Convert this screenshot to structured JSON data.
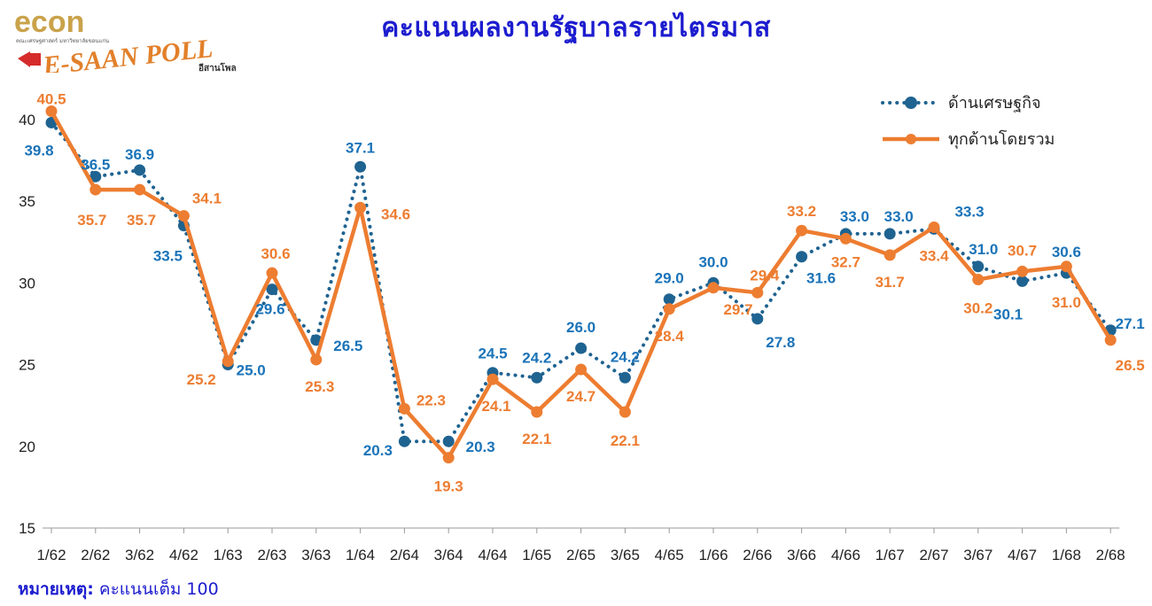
{
  "header": {
    "title": "คะแนนผลงานรัฐบาลรายไตรมาส",
    "logo_econ": "econ",
    "logo_econ_sub": "คณะเศรษฐศาสตร์ มหาวิทยาลัยขอนแก่น",
    "logo_poll": "E-SAAN POLL",
    "logo_poll_sub": "อีสานโพล"
  },
  "footer": {
    "note_label": "หมายเหตุ:",
    "note_text": "คะแนนเต็ม 100"
  },
  "colors": {
    "economy": "#1f6391",
    "economy_label": "#1a73b8",
    "overall": "#ed7d31",
    "title": "#1c1ccf"
  },
  "chart_data": {
    "type": "line",
    "categories": [
      "1/62",
      "2/62",
      "3/62",
      "4/62",
      "1/63",
      "2/63",
      "3/63",
      "1/64",
      "2/64",
      "3/64",
      "4/64",
      "1/65",
      "2/65",
      "3/65",
      "4/65",
      "1/66",
      "2/66",
      "3/66",
      "4/66",
      "1/67",
      "2/67",
      "3/67",
      "4/67",
      "1/68",
      "2/68"
    ],
    "ylim": [
      15,
      40
    ],
    "yticks": [
      15,
      20,
      25,
      30,
      35,
      40
    ],
    "grid": false,
    "legend_position": "top-right",
    "series": [
      {
        "name": "ด้านเศรษฐกิจ",
        "style": "dotted-with-markers",
        "values": [
          39.8,
          36.5,
          36.9,
          33.5,
          25.0,
          29.6,
          26.5,
          37.1,
          20.3,
          20.3,
          24.5,
          24.2,
          26.0,
          24.2,
          29.0,
          30.0,
          27.8,
          31.6,
          33.0,
          33.0,
          33.3,
          31.0,
          30.1,
          30.6,
          27.1
        ],
        "labels": [
          "39.8",
          "36.5",
          "36.9",
          "33.5",
          "25.0",
          "29.6",
          "26.5",
          "37.1",
          "20.3",
          "20.3",
          "24.5",
          "24.2",
          "26.0",
          "24.2",
          "29.0",
          "30.0",
          "27.8",
          "31.6",
          "33.0",
          "33.0",
          "33.3",
          "31.0",
          "30.1",
          "30.6",
          "27.1"
        ]
      },
      {
        "name": "ทุกด้านโดยรวม",
        "style": "solid-with-markers",
        "values": [
          40.5,
          35.7,
          35.7,
          34.1,
          25.2,
          30.6,
          25.3,
          34.6,
          22.3,
          19.3,
          24.1,
          22.1,
          24.7,
          22.1,
          28.4,
          29.7,
          29.4,
          33.2,
          32.7,
          31.7,
          33.4,
          30.2,
          30.7,
          31.0,
          26.5
        ],
        "labels": [
          "40.5",
          "35.7",
          "35.7",
          "34.1",
          "25.2",
          "30.6",
          "25.3",
          "34.6",
          "22.3",
          "19.3",
          "24.1",
          "22.1",
          "24.7",
          "22.1",
          "28.4",
          "29.7",
          "29.4",
          "33.2",
          "32.7",
          "31.7",
          "33.4",
          "30.2",
          "30.7",
          "31.0",
          "26.5"
        ]
      }
    ]
  }
}
